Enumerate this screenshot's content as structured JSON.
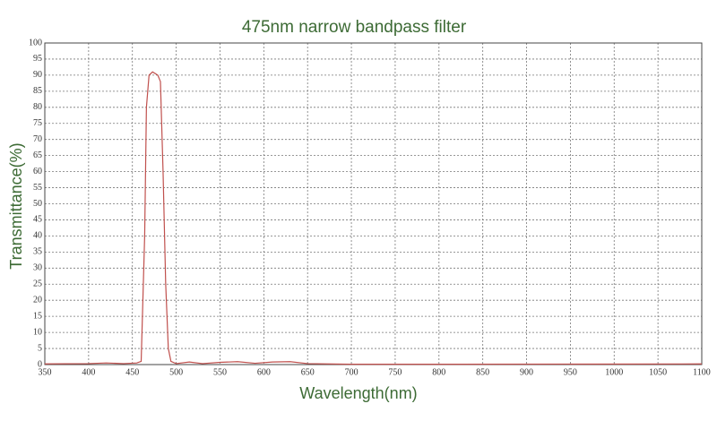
{
  "chart_data": {
    "type": "line",
    "title": "475nm narrow bandpass filter",
    "x_label": "Wavelength(nm)",
    "y_label": "Transmittance(%)",
    "xlim": [
      350,
      1100
    ],
    "ylim": [
      0,
      100
    ],
    "xticks": [
      350,
      400,
      450,
      500,
      550,
      600,
      650,
      700,
      750,
      800,
      850,
      900,
      950,
      1000,
      1050,
      1100
    ],
    "yticks": [
      0,
      5,
      10,
      15,
      20,
      25,
      30,
      35,
      40,
      45,
      50,
      55,
      60,
      65,
      70,
      75,
      80,
      85,
      90,
      95,
      100
    ],
    "grid": true,
    "series": [
      {
        "color": "#c0504d",
        "x": [
          350,
          400,
          420,
          440,
          455,
          460,
          464,
          466,
          469,
          473,
          479,
          482,
          485,
          488,
          491,
          494,
          500,
          515,
          530,
          550,
          570,
          590,
          610,
          630,
          650,
          700,
          800,
          1100
        ],
        "values": [
          0.2,
          0.3,
          0.5,
          0.3,
          0.5,
          1,
          40,
          80,
          90,
          91,
          90,
          88,
          60,
          25,
          5,
          1,
          0.3,
          0.8,
          0.3,
          0.7,
          0.9,
          0.4,
          0.8,
          0.9,
          0.3,
          0.1,
          0.1,
          0.2
        ]
      }
    ]
  }
}
